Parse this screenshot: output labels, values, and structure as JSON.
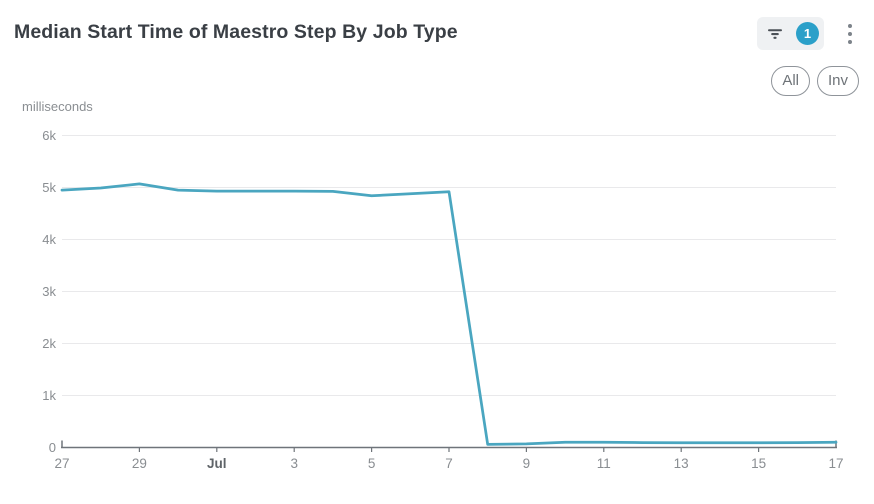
{
  "header": {
    "title": "Median Start Time of Maestro Step By Job Type",
    "filter_count": "1",
    "badge_color": "#2BA0C9",
    "chip_bg_color": "#EFF1F3"
  },
  "pills": [
    {
      "label": "All"
    },
    {
      "label": "Inv"
    }
  ],
  "chart_data": {
    "type": "line",
    "title": "Median Start Time of Maestro Step By Job Type",
    "xlabel": "",
    "ylabel": "milliseconds",
    "x": [
      "Jun 27",
      "Jun 28",
      "Jun 29",
      "Jun 30",
      "Jul 1",
      "Jul 2",
      "Jul 3",
      "Jul 4",
      "Jul 5",
      "Jul 6",
      "Jul 7",
      "Jul 8",
      "Jul 9",
      "Jul 10",
      "Jul 11",
      "Jul 12",
      "Jul 13",
      "Jul 14",
      "Jul 15",
      "Jul 16",
      "Jul 17"
    ],
    "series": [
      {
        "name": "median start time (ms)",
        "color": "#4AA6C0",
        "values": [
          4950,
          4990,
          5070,
          4950,
          4930,
          4930,
          4930,
          4925,
          4840,
          4880,
          4920,
          60,
          70,
          100,
          100,
          95,
          90,
          90,
          90,
          95,
          100
        ]
      }
    ],
    "ylim": [
      0,
      6000
    ],
    "y_tick_labels": [
      "0",
      "1k",
      "2k",
      "3k",
      "4k",
      "5k",
      "6k"
    ],
    "x_tick_indices": [
      0,
      2,
      4,
      6,
      8,
      10,
      12,
      14,
      16,
      18,
      20
    ],
    "x_tick_labels": [
      "27",
      "29",
      "Jul",
      "3",
      "5",
      "7",
      "9",
      "11",
      "13",
      "15",
      "17"
    ],
    "bold_x_tick_label": "Jul",
    "grid": "horizontal",
    "legend_position": "none",
    "colors": {
      "grid_line": "#E9E9EB",
      "axis_line": "#6F747A",
      "tick_text": "#898D91",
      "bold_tick_text": "#5F6468"
    }
  }
}
